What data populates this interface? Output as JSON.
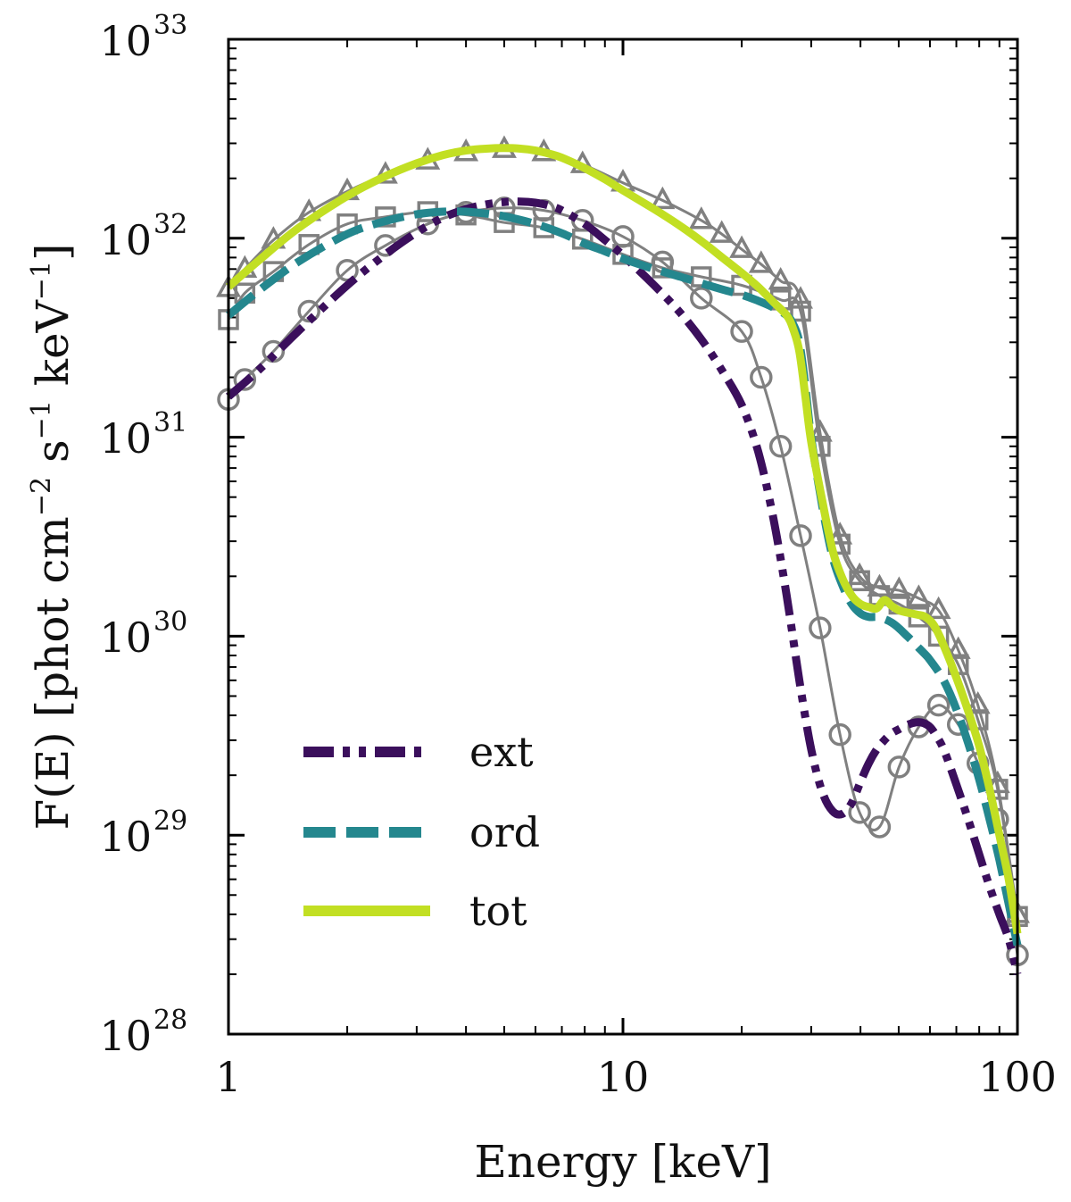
{
  "chart_data": {
    "type": "line",
    "title": "",
    "xlabel": "Energy [keV]",
    "ylabel": "F(E) [phot cm",
    "ylabel_sup1": "−2",
    "ylabel_mid": " s",
    "ylabel_sup2": "−1",
    "ylabel_end": " keV",
    "ylabel_sup3": "−1",
    "ylabel_close": "]",
    "xscale": "log",
    "yscale": "log",
    "xlim": [
      1,
      100
    ],
    "ylim": [
      1e+28,
      1e+33
    ],
    "x_ticks": [
      {
        "value": 1,
        "label": "1"
      },
      {
        "value": 10,
        "label": "10"
      },
      {
        "value": 100,
        "label": "100"
      }
    ],
    "y_ticks": [
      {
        "value": 1e+28,
        "base": "10",
        "exp": "28"
      },
      {
        "value": 1e+29,
        "base": "10",
        "exp": "29"
      },
      {
        "value": 1e+30,
        "base": "10",
        "exp": "30"
      },
      {
        "value": 1e+31,
        "base": "10",
        "exp": "31"
      },
      {
        "value": 1e+32,
        "base": "10",
        "exp": "32"
      },
      {
        "value": 1e+33,
        "base": "10",
        "exp": "33"
      }
    ],
    "legend_position": "lower-left",
    "series": [
      {
        "name": "ext",
        "label": "ext",
        "color": "#3b0f5c",
        "style": "dashdot",
        "x": [
          1,
          1.2,
          1.5,
          2,
          2.5,
          3,
          3.5,
          4,
          4.5,
          5,
          5.5,
          6,
          6.5,
          7,
          8,
          9,
          10,
          12,
          14,
          16,
          18,
          20,
          22,
          24,
          26,
          28,
          30,
          32,
          34,
          36,
          38,
          40,
          42,
          44,
          46,
          48,
          50,
          52,
          54,
          56,
          58,
          60,
          62,
          65,
          70,
          75,
          80,
          85,
          90,
          95,
          100
        ],
        "y": [
          1.6e+31,
          2.2e+31,
          3.4e+31,
          5.8e+31,
          8.3e+31,
          1.07e+32,
          1.27e+32,
          1.4e+32,
          1.48e+32,
          1.52e+32,
          1.53e+32,
          1.51e+32,
          1.46e+32,
          1.38e+32,
          1.18e+32,
          9.8e+31,
          8.2e+31,
          5.8e+31,
          4.2e+31,
          3e+31,
          2.1e+31,
          1.45e+31,
          8.5e+30,
          4e+30,
          1.6e+30,
          6e+29,
          2.7e+29,
          1.65e+29,
          1.32e+29,
          1.28e+29,
          1.45e+29,
          1.85e+29,
          2.3e+29,
          2.7e+29,
          3e+29,
          3.25e+29,
          3.4e+29,
          3.55e+29,
          3.65e+29,
          3.7e+29,
          3.65e+29,
          3.5e+29,
          3.2e+29,
          2.7e+29,
          1.8e+29,
          1.2e+29,
          8e+28,
          5.5e+28,
          4e+28,
          3e+28,
          2e+28
        ]
      },
      {
        "name": "ord",
        "label": "ord",
        "color": "#24878e",
        "style": "dashed",
        "x": [
          1,
          1.2,
          1.5,
          2,
          2.5,
          3,
          3.5,
          4,
          4.5,
          5,
          6,
          7,
          8,
          9,
          10,
          12,
          14,
          16,
          18,
          20,
          22,
          24,
          26,
          27,
          28,
          29,
          30,
          32,
          34,
          36,
          38,
          40,
          42,
          44,
          46,
          48,
          50,
          52,
          54,
          56,
          58,
          60,
          65,
          70,
          75,
          80,
          85,
          90,
          95,
          100
        ],
        "y": [
          4.1e+31,
          5.5e+31,
          7.6e+31,
          1.05e+32,
          1.22e+32,
          1.32e+32,
          1.36e+32,
          1.36e+32,
          1.33e+32,
          1.29e+32,
          1.18e+32,
          1.06e+32,
          9.4e+31,
          8.6e+31,
          7.9e+31,
          7e+31,
          6.4e+31,
          5.9e+31,
          5.5e+31,
          5.2e+31,
          4.85e+31,
          4.5e+31,
          4.1e+31,
          3.7e+31,
          3e+31,
          1.8e+31,
          1e+31,
          4.5e+30,
          2.5e+30,
          1.8e+30,
          1.45e+30,
          1.3e+30,
          1.25e+30,
          1.25e+30,
          1.22e+30,
          1.17e+30,
          1.1e+30,
          1.02e+30,
          9.5e+29,
          8.8e+29,
          8.2e+29,
          7.6e+29,
          6e+29,
          4.3e+29,
          2.9e+29,
          1.9e+29,
          1.2e+29,
          7.5e+28,
          4.5e+28,
          2.8e+28
        ]
      },
      {
        "name": "tot",
        "label": "tot",
        "color": "#c2df23",
        "style": "solid",
        "x": [
          1,
          1.2,
          1.5,
          2,
          2.5,
          3,
          3.5,
          4,
          4.5,
          5,
          5.5,
          6,
          6.5,
          7,
          8,
          9,
          10,
          12,
          14,
          16,
          18,
          20,
          22,
          24,
          26,
          27,
          28,
          29,
          30,
          32,
          34,
          36,
          38,
          40,
          42,
          44,
          46,
          48,
          50,
          52,
          54,
          56,
          58,
          60,
          62,
          65,
          70,
          75,
          80,
          85,
          90,
          95,
          100
        ],
        "y": [
          5.7e+31,
          7.8e+31,
          1.12e+32,
          1.63e+32,
          2.05e+32,
          2.38e+32,
          2.62e+32,
          2.76e+32,
          2.82e+32,
          2.84e+32,
          2.82e+32,
          2.76e+32,
          2.66e+32,
          2.54e+32,
          2.25e+32,
          1.98e+32,
          1.74e+32,
          1.4e+32,
          1.15e+32,
          9.5e+31,
          7.9e+31,
          6.7e+31,
          5.7e+31,
          4.8e+31,
          4.1e+31,
          3.5e+31,
          2.7e+31,
          1.6e+31,
          9.5e+30,
          4.8e+30,
          2.7e+30,
          1.95e+30,
          1.6e+30,
          1.45e+30,
          1.4e+30,
          1.38e+30,
          1.52e+30,
          1.42e+30,
          1.35e+30,
          1.32e+30,
          1.3e+30,
          1.28e+30,
          1.26e+30,
          1.2e+30,
          1.1e+30,
          9e+29,
          6.2e+29,
          4.2e+29,
          2.8e+29,
          1.7e+29,
          1e+29,
          6e+28,
          3.2e+28
        ]
      },
      {
        "name": "ext-markers",
        "label": "",
        "marker": "circle",
        "color": "#808080",
        "x": [
          1,
          1.1,
          1.3,
          1.6,
          2.0,
          2.5,
          3.2,
          4.0,
          5.0,
          6.3,
          7.9,
          10,
          12.6,
          15.8,
          20,
          22.4,
          25.1,
          28.2,
          31.6,
          35.5,
          39.8,
          44.7,
          50.1,
          56.2,
          63.1,
          70.8,
          79.4,
          89.1,
          100
        ],
        "y": [
          1.55e+31,
          1.95e+31,
          2.7e+31,
          4.3e+31,
          6.9e+31,
          9.2e+31,
          1.18e+32,
          1.35e+32,
          1.42e+32,
          1.38e+32,
          1.23e+32,
          1.02e+32,
          7.6e+31,
          5e+31,
          3.4e+31,
          2e+31,
          9e+30,
          3.2e+30,
          1.1e+30,
          3.2e+29,
          1.3e+29,
          1.1e+29,
          2.2e+29,
          3.5e+29,
          4.5e+29,
          3.6e+29,
          2.3e+29,
          1.2e+29,
          2.5e+28
        ]
      },
      {
        "name": "ord-markers",
        "label": "",
        "marker": "square",
        "color": "#808080",
        "x": [
          1,
          1.1,
          1.3,
          1.6,
          2.0,
          2.5,
          3.2,
          4.0,
          5.0,
          6.3,
          7.9,
          10,
          12.6,
          15.8,
          20,
          25.1,
          28.2,
          31.6,
          35.5,
          39.8,
          44.7,
          50.1,
          56.2,
          63.1,
          70.8,
          79.4,
          89.1,
          100
        ],
        "y": [
          3.9e+31,
          5.3e+31,
          6.8e+31,
          9.3e+31,
          1.18e+32,
          1.28e+32,
          1.36e+32,
          1.31e+32,
          1.2e+32,
          1.13e+32,
          9.9e+31,
          8.3e+31,
          7.1e+31,
          6.4e+31,
          5.8e+31,
          4.9e+31,
          4.3e+31,
          9e+30,
          2.9e+30,
          1.9e+30,
          1.6e+30,
          1.45e+30,
          1.25e+30,
          1e+30,
          7.2e+29,
          3.8e+29,
          1.7e+29,
          3.9e+28
        ]
      },
      {
        "name": "tot-markers",
        "label": "",
        "marker": "triangle",
        "color": "#808080",
        "x": [
          1,
          1.1,
          1.3,
          1.6,
          2.0,
          2.5,
          3.2,
          4.0,
          5.0,
          6.3,
          7.9,
          10,
          12.6,
          15.8,
          17.8,
          20,
          22.4,
          25.1,
          28.2,
          31.6,
          35.5,
          39.8,
          44.7,
          50.1,
          56.2,
          63.1,
          70.8,
          79.4,
          89.1,
          100
        ],
        "y": [
          5.6e+31,
          7e+31,
          9.8e+31,
          1.35e+32,
          1.72e+32,
          2.08e+32,
          2.45e+32,
          2.7e+32,
          2.8e+32,
          2.7e+32,
          2.35e+32,
          1.9e+32,
          1.55e+32,
          1.23e+32,
          1.05e+32,
          8.8e+31,
          7.4e+31,
          6.1e+31,
          4.9e+31,
          1.05e+31,
          3.2e+30,
          2e+30,
          1.75e+30,
          1.7e+30,
          1.55e+30,
          1.35e+30,
          8.5e+29,
          4.5e+29,
          1.8e+29,
          4e+28
        ]
      }
    ]
  }
}
